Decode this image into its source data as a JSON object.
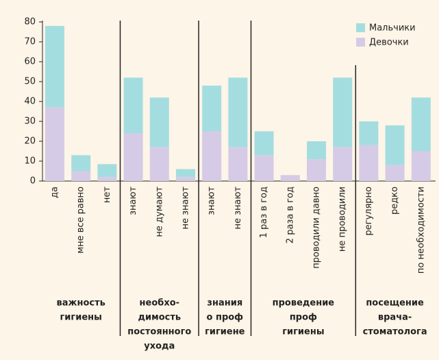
{
  "chart_data": {
    "type": "bar",
    "stacked": true,
    "groups": [
      {
        "label": [
          "важность",
          "гигиены"
        ],
        "categories": [
          "да",
          "мне все равно",
          "нет"
        ]
      },
      {
        "label": [
          "необхо-",
          "димость",
          "постоянного",
          "ухода"
        ],
        "categories": [
          "знают",
          "не думают",
          "не знают"
        ]
      },
      {
        "label": [
          "знания",
          "о проф",
          "гигиене"
        ],
        "categories": [
          "знают",
          "не знают"
        ]
      },
      {
        "label": [
          "проведение",
          "проф",
          "гигиены"
        ],
        "categories": [
          "1 раз в год",
          "2 раза в год",
          "проводили давно",
          "не проводили"
        ]
      },
      {
        "label": [
          "посещение",
          "врача-",
          "стоматолога"
        ],
        "categories": [
          "регулярно",
          "редко",
          "по необходимости"
        ]
      }
    ],
    "series": [
      {
        "name": "Девочки",
        "color": "#d6cbe6",
        "values": [
          37,
          5,
          2,
          24,
          17,
          2,
          25,
          17,
          13,
          3,
          11,
          17,
          18,
          8,
          15
        ]
      },
      {
        "name": "Мальчики",
        "color": "#a4dde0",
        "values": [
          41,
          8,
          6.5,
          28,
          25,
          4,
          23,
          35,
          12,
          0,
          9,
          35,
          12,
          20,
          27
        ]
      }
    ],
    "ylim": [
      0,
      80
    ],
    "yticks": [
      0,
      10,
      20,
      30,
      40,
      50,
      60,
      70,
      80
    ],
    "legend": "top-right"
  }
}
